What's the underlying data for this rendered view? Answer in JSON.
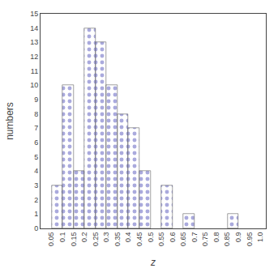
{
  "chart_data": {
    "type": "histogram",
    "bins": [
      0.0,
      0.05,
      0.1,
      0.15,
      0.2,
      0.25,
      0.3,
      0.35,
      0.4,
      0.45,
      0.5,
      0.55,
      0.6,
      0.65,
      0.7,
      0.75,
      0.8,
      0.85,
      0.9,
      0.95,
      1.0
    ],
    "values": [
      0,
      3,
      10,
      4,
      14,
      13,
      10,
      8,
      7,
      4,
      0,
      3,
      0,
      1,
      0,
      0,
      0,
      1,
      0,
      0
    ],
    "color": "#aaaadd",
    "xlabel": "z",
    "ylabel": "numbers",
    "xlim": [
      0.0,
      1.025
    ],
    "ylim": [
      0,
      15
    ],
    "xticks": [
      0.05,
      0.1,
      0.15,
      0.2,
      0.25,
      0.3,
      0.35,
      0.4,
      0.45,
      0.5,
      0.55,
      0.6,
      0.65,
      0.7,
      0.75,
      0.8,
      0.85,
      0.9,
      0.95,
      {
        "value": 1.0,
        "label": "1.0"
      }
    ],
    "yticks": [
      0,
      1,
      2,
      3,
      4,
      5,
      6,
      7,
      8,
      9,
      10,
      11,
      12,
      13,
      14,
      15
    ],
    "grid": false
  }
}
